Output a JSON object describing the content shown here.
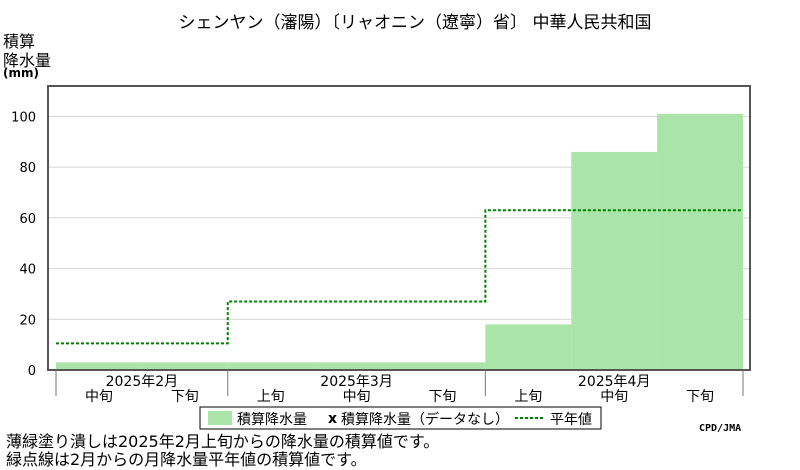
{
  "chart_data": {
    "type": "bar",
    "title": "シェンヤン（瀋陽）〔リャオニン（遼寧）省〕 中華人民共和国",
    "ylabel": [
      "積算",
      "降水量"
    ],
    "yunit": "(mm)",
    "ylim": [
      0,
      112
    ],
    "yticks": [
      0,
      20,
      40,
      60,
      80,
      100
    ],
    "grid": true,
    "periods": [
      "2025年2月 中旬",
      "2025年2月 下旬",
      "2025年3月 上旬",
      "2025年3月 中旬",
      "2025年3月 下旬",
      "2025年4月 上旬",
      "2025年4月 中旬",
      "2025年4月 下旬"
    ],
    "xticks": [
      "中旬",
      "下旬",
      "上旬",
      "中旬",
      "下旬",
      "上旬",
      "中旬",
      "下旬"
    ],
    "months": [
      {
        "label": "2025年2月",
        "start": 0,
        "end": 2
      },
      {
        "label": "2025年3月",
        "start": 2,
        "end": 5
      },
      {
        "label": "2025年4月",
        "start": 5,
        "end": 8
      }
    ],
    "series": [
      {
        "name": "積算降水量",
        "kind": "bar",
        "color": "#aae4a8",
        "values": [
          3,
          3,
          3,
          3,
          3,
          18,
          86,
          101
        ]
      },
      {
        "name": "平年値",
        "kind": "step",
        "color": "#008000",
        "values": [
          10.5,
          10.5,
          27,
          27,
          27,
          63,
          63,
          63
        ]
      }
    ],
    "legend": {
      "items": [
        "積算降水量",
        "積算降水量（データなし）",
        "平年値"
      ],
      "nodata_marker": "x",
      "position": "bottom"
    },
    "credit": "CPD/JMA",
    "notes": [
      "薄緑塗り潰しは2025年2月上旬からの降水量の積算値です。",
      "緑点線は2月からの月降水量平年値の積算値です。"
    ]
  }
}
